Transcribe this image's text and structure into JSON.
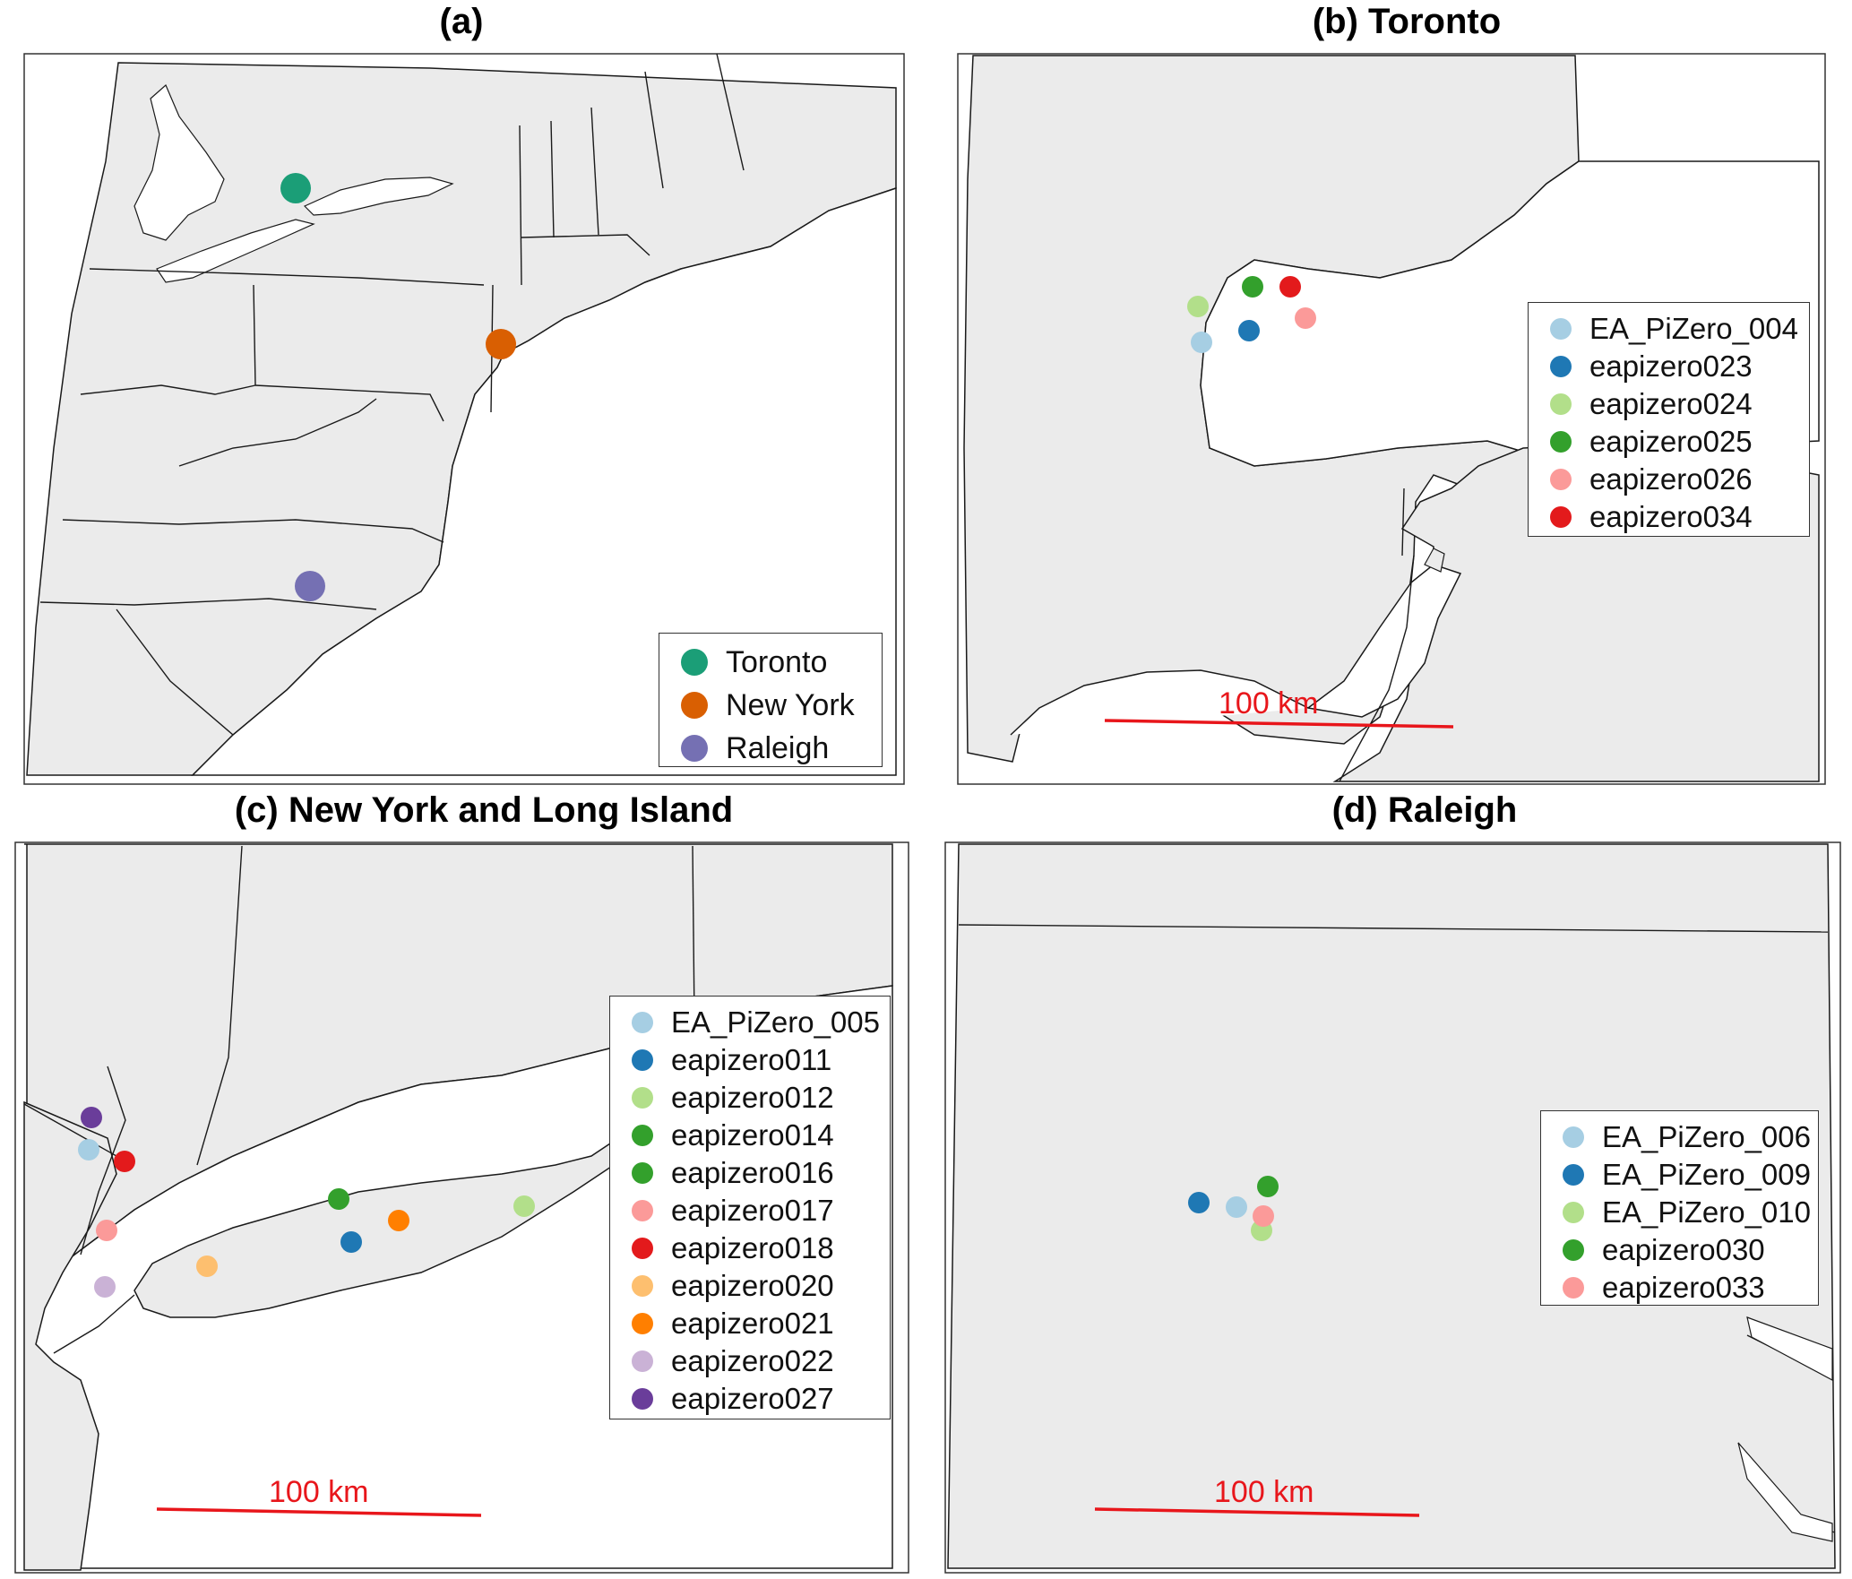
{
  "figure": {
    "panels": [
      {
        "id": "a",
        "title": "(a)",
        "legend": [
          {
            "label": "Toronto",
            "color": "#1b9e77"
          },
          {
            "label": "New York",
            "color": "#d95f02"
          },
          {
            "label": "Raleigh",
            "color": "#7570b3"
          }
        ]
      },
      {
        "id": "b",
        "title": "(b) Toronto",
        "scale_label": "100 km",
        "legend": [
          {
            "label": "EA_PiZero_004",
            "color": "#a6cee3"
          },
          {
            "label": "eapizero023",
            "color": "#1f78b4"
          },
          {
            "label": "eapizero024",
            "color": "#b2df8a"
          },
          {
            "label": "eapizero025",
            "color": "#33a02c"
          },
          {
            "label": "eapizero026",
            "color": "#fb9a99"
          },
          {
            "label": "eapizero034",
            "color": "#e31a1c"
          }
        ]
      },
      {
        "id": "c",
        "title": "(c) New York and Long Island",
        "scale_label": "100 km",
        "legend": [
          {
            "label": "EA_PiZero_005",
            "color": "#a6cee3"
          },
          {
            "label": "eapizero011",
            "color": "#1f78b4"
          },
          {
            "label": "eapizero012",
            "color": "#b2df8a"
          },
          {
            "label": "eapizero014",
            "color": "#33a02c"
          },
          {
            "label": "eapizero016",
            "color": "#33a02c"
          },
          {
            "label": "eapizero017",
            "color": "#fb9a99"
          },
          {
            "label": "eapizero018",
            "color": "#e31a1c"
          },
          {
            "label": "eapizero020",
            "color": "#fdbf6f"
          },
          {
            "label": "eapizero021",
            "color": "#ff7f00"
          },
          {
            "label": "eapizero022",
            "color": "#cab2d6"
          },
          {
            "label": "eapizero027",
            "color": "#6a3d9a"
          }
        ]
      },
      {
        "id": "d",
        "title": "(d) Raleigh",
        "scale_label": "100 km",
        "legend": [
          {
            "label": "EA_PiZero_006",
            "color": "#a6cee3"
          },
          {
            "label": "EA_PiZero_009",
            "color": "#1f78b4"
          },
          {
            "label": "EA_PiZero_010",
            "color": "#b2df8a"
          },
          {
            "label": "eapizero030",
            "color": "#33a02c"
          },
          {
            "label": "eapizero033",
            "color": "#fb9a99"
          }
        ]
      }
    ],
    "colors": {
      "land": "#ebebeb",
      "water": "#ffffff",
      "border": "#1a1a1a",
      "scale_bar": "#e8161b"
    }
  }
}
